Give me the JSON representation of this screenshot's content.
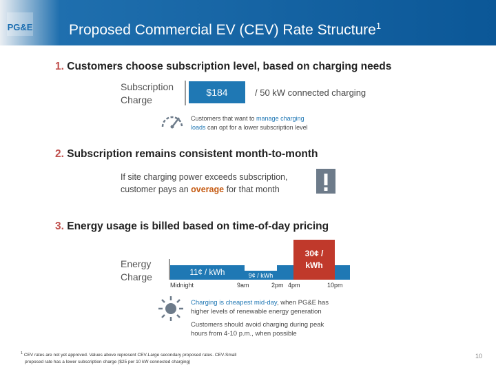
{
  "header": {
    "logo_text": "PG&E",
    "title": "Proposed Commercial EV (CEV) Rate Structure",
    "title_sup": "1"
  },
  "section1": {
    "number": "1.",
    "heading": "Customers choose subscription level, based on charging needs",
    "label_line1": "Subscription",
    "label_line2": "Charge",
    "price": "$184",
    "price_desc": "/ 50 kW connected charging",
    "note_before": "Customers that want to ",
    "note_highlight1": "manage charging",
    "note_highlight2": "loads",
    "note_after": " can opt for a lower subscription level"
  },
  "section2": {
    "number": "2.",
    "heading": "Subscription remains consistent month-to-month",
    "line1": "If site charging power exceeds subscription,",
    "line2_before": "customer pays an ",
    "line2_highlight": "overage",
    "line2_after": " for that month"
  },
  "section3": {
    "number": "3.",
    "heading": "Energy usage is billed based on time-of-day pricing",
    "label_line1": "Energy",
    "label_line2": "Charge",
    "rates": {
      "off_peak": "11¢ / kWh",
      "super_off_peak": "9¢ / kWh",
      "peak_line1": "30¢ /",
      "peak_line2": "kWh"
    },
    "ticks": [
      "Midnight",
      "9am",
      "2pm",
      "4pm",
      "10pm"
    ],
    "sun_note_highlight": "Charging is cheapest mid-day",
    "sun_note_line1_after": ", when PG&E has",
    "sun_note_line2": "higher levels of renewable energy generation",
    "avoid_line1": "Customers should avoid charging during peak",
    "avoid_line2": "hours from 4-10 p.m., when possible"
  },
  "footer": {
    "footnote_mark": "1",
    "footnote_line1": "CEV rates are not yet approved. Values above represent CEV-Large secondary proposed rates. CEV-Small",
    "footnote_line2": "proposed rate has a lower subscription charge ($25 per 10 kW connected charging)",
    "page_number": "10"
  },
  "colors": {
    "header_blue": "#0b5797",
    "accent_red": "#c0504d",
    "rate_blue": "#1f78b4",
    "peak_red": "#c0392b",
    "highlight_orange": "#c55a11",
    "sun_gray": "#6d7b8a"
  },
  "icons": {
    "gauge": "gauge-icon",
    "warning": "warning-icon",
    "sun": "sun-icon"
  }
}
